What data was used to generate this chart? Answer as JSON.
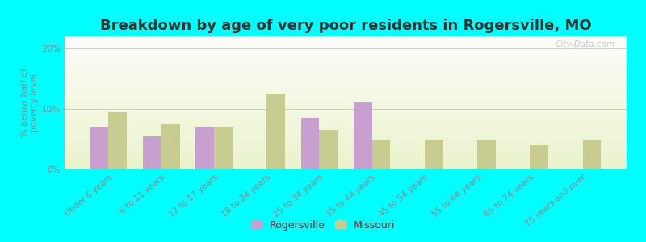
{
  "title": "Breakdown by age of very poor residents in Rogersville, MO",
  "categories": [
    "Under 6 years",
    "6 to 11 years",
    "12 to 17 years",
    "18 to 24 years",
    "25 to 34 years",
    "35 to 44 years",
    "45 to 54 years",
    "55 to 64 years",
    "65 to 74 years",
    "75 years and over"
  ],
  "rogersville": [
    7.0,
    5.5,
    7.0,
    0.0,
    8.5,
    11.0,
    0.0,
    0.0,
    0.0,
    0.0
  ],
  "missouri": [
    9.5,
    7.5,
    7.0,
    12.5,
    6.5,
    5.0,
    5.0,
    5.0,
    4.0,
    5.0
  ],
  "rogersville_color": "#c8a0d0",
  "missouri_color": "#c8cc90",
  "ylabel": "% below half of\npoverty level",
  "ylim": [
    0,
    22
  ],
  "yticks": [
    0,
    10,
    20
  ],
  "ytick_labels": [
    "0%",
    "10%",
    "20%"
  ],
  "background_color": "#00ffff",
  "bar_width": 0.35,
  "title_fontsize": 13,
  "axis_label_fontsize": 8,
  "tick_fontsize": 7.5,
  "legend_labels": [
    "Rogersville",
    "Missouri"
  ],
  "watermark": "City-Data.com"
}
